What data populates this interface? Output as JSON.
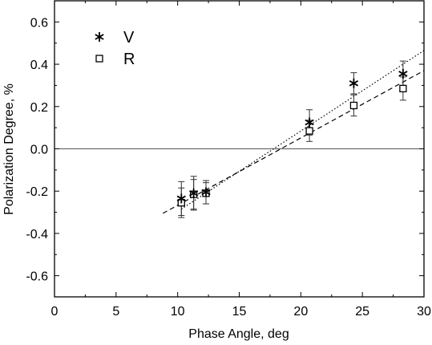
{
  "chart_data": {
    "type": "scatter",
    "xlabel": "Phase Angle, deg",
    "ylabel": "Polarization Degree, %",
    "xlim": [
      0,
      30
    ],
    "ylim": [
      -0.7,
      0.7
    ],
    "xticks": [
      0,
      5,
      10,
      15,
      20,
      25,
      30
    ],
    "yticks": [
      -0.6,
      -0.4,
      -0.2,
      0.0,
      0.2,
      0.4,
      0.6
    ],
    "xtick_labels": [
      "0",
      "5",
      "10",
      "15",
      "20",
      "25",
      "30"
    ],
    "ytick_labels": [
      "-0.6",
      "-0.4",
      "-0.2",
      "0.0",
      "0.2",
      "0.4",
      "0.6"
    ],
    "zero_line": true,
    "grid": false,
    "legend_position": "top-left",
    "series": [
      {
        "name": "V",
        "marker": "asterisk",
        "x": [
          10.3,
          11.3,
          12.3,
          20.7,
          24.3,
          28.3
        ],
        "y": [
          -0.235,
          -0.21,
          -0.205,
          0.125,
          0.31,
          0.355
        ],
        "yerr": [
          0.08,
          0.08,
          0.055,
          0.06,
          0.05,
          0.06
        ],
        "fit_line": {
          "style": "dotted",
          "x": [
            10.3,
            30.0
          ],
          "y": [
            -0.285,
            0.465
          ]
        }
      },
      {
        "name": "R",
        "marker": "square",
        "x": [
          10.3,
          11.3,
          12.3,
          20.7,
          24.3,
          28.3
        ],
        "y": [
          -0.255,
          -0.215,
          -0.21,
          0.085,
          0.205,
          0.285
        ],
        "yerr": [
          0.07,
          0.07,
          0.05,
          0.05,
          0.05,
          0.055
        ],
        "fit_line": {
          "style": "dashed",
          "x": [
            8.8,
            30.0
          ],
          "y": [
            -0.305,
            0.37
          ]
        }
      }
    ]
  }
}
